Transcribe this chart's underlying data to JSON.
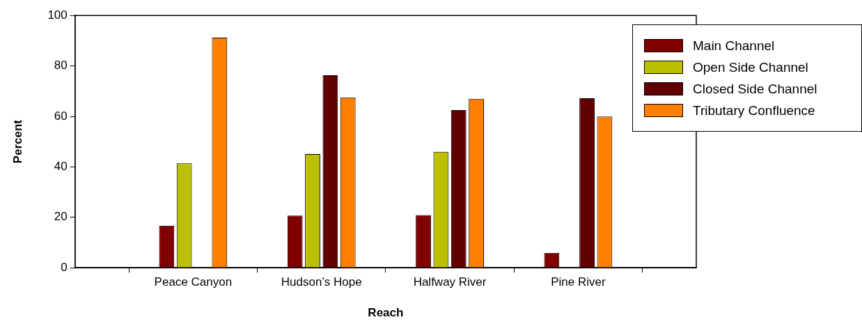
{
  "chart_data": {
    "type": "bar",
    "xlabel": "Reach",
    "ylabel": "Percent",
    "categories": [
      "Peace Canyon",
      "Hudson’s Hope",
      "Halfway River",
      "Pine River"
    ],
    "series": [
      {
        "name": "Main Channel",
        "color": "#800000",
        "values": [
          16.7,
          20.7,
          20.9,
          5.9
        ]
      },
      {
        "name": "Open Side Channel",
        "color": "#bbc000",
        "values": [
          41.4,
          45.1,
          46.0,
          null
        ]
      },
      {
        "name": "Closed Side Channel",
        "color": "#600000",
        "values": [
          null,
          76.3,
          62.5,
          67.2
        ]
      },
      {
        "name": "Tributary Confluence",
        "color": "#ff8000",
        "values": [
          91.2,
          67.5,
          67.0,
          59.9
        ]
      }
    ],
    "ylim": [
      0,
      100
    ],
    "yticks": [
      0,
      20,
      40,
      60,
      80,
      100
    ],
    "grid": false,
    "legend": "top right"
  }
}
